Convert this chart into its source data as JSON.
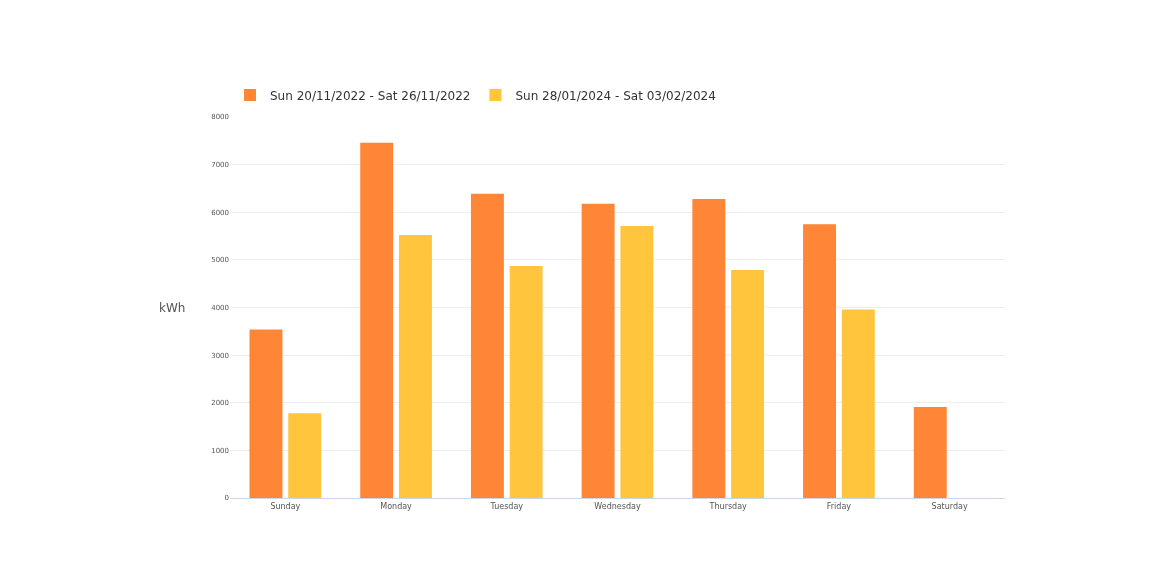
{
  "chart_data": {
    "type": "bar",
    "ylabel": "kWh",
    "categories": [
      "Sunday",
      "Monday",
      "Tuesday",
      "Wednesday",
      "Thursday",
      "Friday",
      "Saturday"
    ],
    "series": [
      {
        "name": "Sun 20/11/2022 - Sat 26/11/2022",
        "color": "#ff8537",
        "values": [
          3540,
          7460,
          6390,
          6180,
          6280,
          5750,
          1910
        ]
      },
      {
        "name": "Sun 28/01/2024 - Sat 03/02/2024",
        "color": "#ffc53d",
        "values": [
          1780,
          5520,
          4870,
          5710,
          4790,
          3960,
          null
        ]
      }
    ],
    "ylim": [
      0,
      8000
    ],
    "yticks": [
      0,
      1000,
      2000,
      3000,
      4000,
      5000,
      6000,
      7000,
      8000
    ],
    "grid": "y",
    "legend": "top left"
  }
}
